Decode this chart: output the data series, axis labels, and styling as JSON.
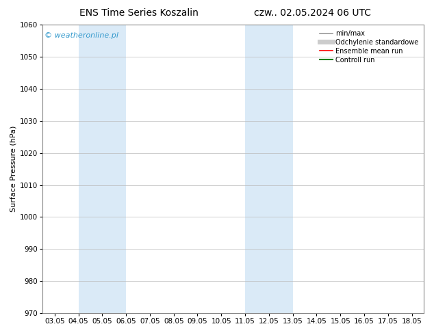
{
  "title_left": "ENS Time Series Koszalin",
  "title_right": "czw.. 02.05.2024 06 UTC",
  "ylabel": "Surface Pressure (hPa)",
  "ylim": [
    970,
    1060
  ],
  "yticks": [
    970,
    980,
    990,
    1000,
    1010,
    1020,
    1030,
    1040,
    1050,
    1060
  ],
  "xtick_labels": [
    "03.05",
    "04.05",
    "05.05",
    "06.05",
    "07.05",
    "08.05",
    "09.05",
    "10.05",
    "11.05",
    "12.05",
    "13.05",
    "14.05",
    "15.05",
    "16.05",
    "17.05",
    "18.05"
  ],
  "xtick_positions": [
    0,
    1,
    2,
    3,
    4,
    5,
    6,
    7,
    8,
    9,
    10,
    11,
    12,
    13,
    14,
    15
  ],
  "xlim": [
    -0.5,
    15.5
  ],
  "shaded_bands": [
    {
      "xmin": 1.0,
      "xmax": 2.0
    },
    {
      "xmin": 2.5,
      "xmax": 3.0
    },
    {
      "xmin": 8.0,
      "xmax": 9.0
    },
    {
      "xmin": 9.5,
      "xmax": 10.0
    }
  ],
  "shade_color": "#daeaf7",
  "watermark": "© weatheronline.pl",
  "watermark_color": "#3399cc",
  "legend_items": [
    {
      "label": "min/max",
      "color": "#999999",
      "lw": 1.2
    },
    {
      "label": "Odchylenie standardowe",
      "color": "#cccccc",
      "lw": 5
    },
    {
      "label": "Ensemble mean run",
      "color": "#ff0000",
      "lw": 1.2
    },
    {
      "label": "Controll run",
      "color": "#008000",
      "lw": 1.5
    }
  ],
  "bg_color": "#ffffff",
  "title_fontsize": 10,
  "ylabel_fontsize": 8,
  "tick_fontsize": 7.5,
  "legend_fontsize": 7,
  "watermark_fontsize": 8
}
